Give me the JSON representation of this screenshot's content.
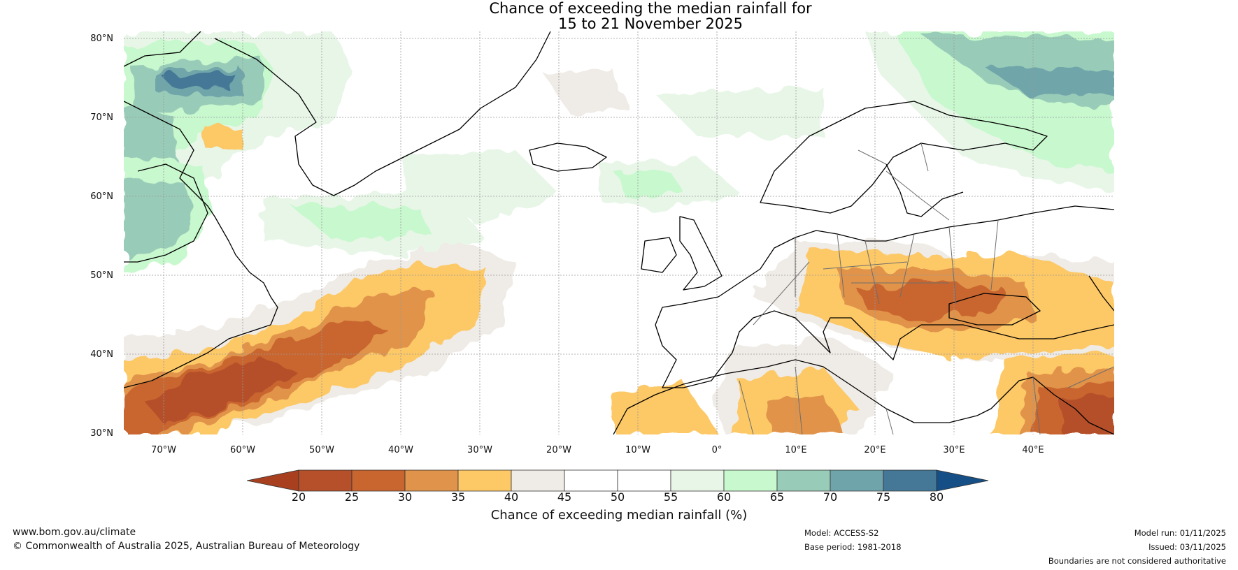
{
  "title_line1": "Chance of exceeding the median rainfall for",
  "title_line2": "15 to 21 November 2025",
  "lat_labels": [
    "80°N",
    "70°N",
    "60°N",
    "50°N",
    "40°N",
    "30°N"
  ],
  "lon_labels": [
    "70°W",
    "60°W",
    "50°W",
    "40°W",
    "30°W",
    "20°W",
    "10°W",
    "0°",
    "10°E",
    "20°E",
    "30°E",
    "40°E"
  ],
  "colorbar": {
    "ticks": [
      "20",
      "25",
      "30",
      "35",
      "40",
      "45",
      "50",
      "55",
      "60",
      "65",
      "70",
      "75",
      "80"
    ],
    "colors": [
      "#a8401f",
      "#b5502a",
      "#c9652f",
      "#e0934a",
      "#fdc866",
      "#efebe6",
      "#ffffff",
      "#ffffff",
      "#e8f6e8",
      "#c8f8cd",
      "#99ccb8",
      "#6fa5aa",
      "#447896",
      "#154f86"
    ],
    "label": "Chance of exceeding median rainfall (%)"
  },
  "footer": {
    "url": "www.bom.gov.au/climate",
    "copyright": "© Commonwealth of Australia 2025, Australian Bureau of Meteorology",
    "model": "Model: ACCESS-S2",
    "base_period": "Base period: 1981-2018",
    "model_run": "Model run: 01/11/2025",
    "issued": "Issued: 03/11/2025",
    "disclaimer": "Boundaries are not considered authoritative"
  }
}
